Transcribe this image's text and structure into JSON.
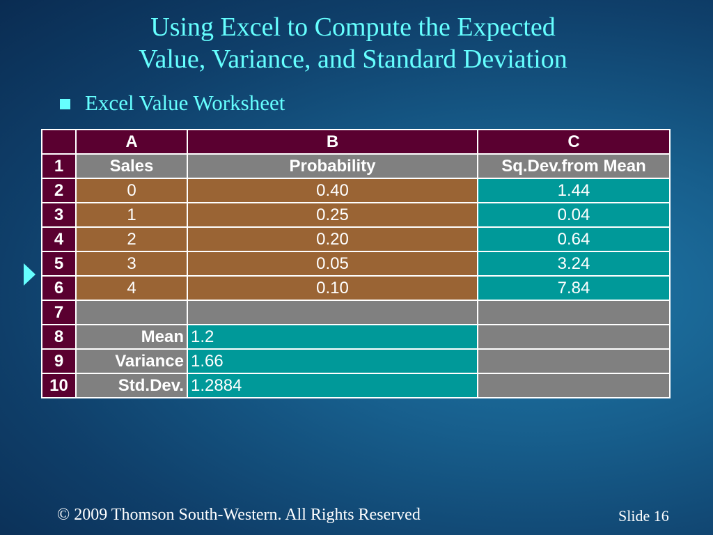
{
  "slide": {
    "title_line1": "Using Excel to Compute the Expected",
    "title_line2": "Value, Variance, and Standard Deviation",
    "bullet": "Excel Value Worksheet",
    "footer_copyright": "© 2009  Thomson South-Western.  All Rights Reserved",
    "slide_number": "Slide 16"
  },
  "colors": {
    "title": "#66ffff",
    "header_bg": "#5a0030",
    "brown": "#9a6434",
    "teal": "#009999",
    "gray": "#808080"
  },
  "sheet": {
    "columns": [
      "A",
      "B",
      "C"
    ],
    "header_row": {
      "num": "1",
      "a": "Sales",
      "b": "Probability",
      "c": "Sq.Dev.from Mean"
    },
    "data_rows": [
      {
        "num": "2",
        "a": "0",
        "b": "0.40",
        "c": "1.44"
      },
      {
        "num": "3",
        "a": "1",
        "b": "0.25",
        "c": "0.04"
      },
      {
        "num": "4",
        "a": "2",
        "b": "0.20",
        "c": "0.64"
      },
      {
        "num": "5",
        "a": "3",
        "b": "0.05",
        "c": "3.24"
      },
      {
        "num": "6",
        "a": "4",
        "b": "0.10",
        "c": "7.84"
      }
    ],
    "empty_row": {
      "num": "7"
    },
    "summary_rows": [
      {
        "num": "8",
        "label": "Mean",
        "value": "1.2"
      },
      {
        "num": "9",
        "label": "Variance",
        "value": "1.66"
      },
      {
        "num": "10",
        "label": "Std.Dev.",
        "value": "1.2884"
      }
    ]
  }
}
